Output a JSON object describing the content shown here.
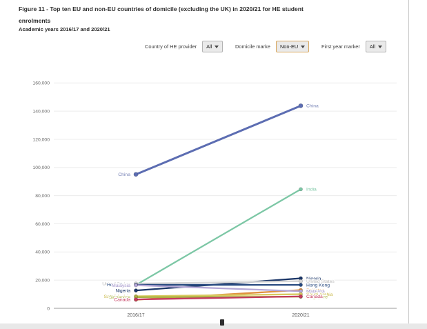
{
  "header": {
    "title": "Figure 11 - Top ten EU and non-EU countries of domicile (excluding the UK) in 2020/21 for HE student enrolments",
    "subtitle": "Academic years 2016/17 and 2020/21"
  },
  "filters": {
    "country_label": "Country of HE provider",
    "country_value": "All",
    "domicile_label": "Domicile marke",
    "domicile_value": "Non-EU",
    "first_year_label": "First year marker",
    "first_year_value": "All"
  },
  "colors": {
    "domicile_highlight_border": "#d9a75e",
    "axis_line": "#9a9a9a",
    "gridline": "#ececec"
  },
  "chart_data": {
    "type": "line",
    "x": [
      "2016/17",
      "2020/21"
    ],
    "title": "",
    "xlabel": "",
    "ylabel": "",
    "ylim": [
      0,
      160000
    ],
    "ytick_step": 20000,
    "grid": true,
    "legend_position": "inline-labels",
    "series": [
      {
        "name": "China",
        "values": [
          95090,
          143820
        ],
        "color": "#5c6db2",
        "label_color": "#7b86b8",
        "left_label": true
      },
      {
        "name": "India",
        "values": [
          16550,
          84555
        ],
        "color": "#7cc7a5",
        "label_color": "#7cc7a5",
        "left_label": false
      },
      {
        "name": "Nigeria",
        "values": [
          12665,
          21305
        ],
        "color": "#1b3668",
        "label_color": "#1b3668",
        "left_label": true
      },
      {
        "name": "United States",
        "values": [
          17580,
          19220
        ],
        "color": "#d6d6d6",
        "label_color": "#b9b9b9",
        "left_label": true
      },
      {
        "name": "Hong Kong",
        "values": [
          16680,
          16655
        ],
        "color": "#27497f",
        "label_color": "#27497f",
        "left_label": true
      },
      {
        "name": "Pakistan",
        "values": [
          6090,
          12975
        ],
        "color": "#e0913f",
        "label_color": "#e0913f",
        "left_label": false
      },
      {
        "name": "Malaysia",
        "values": [
          16370,
          12135
        ],
        "color": "#b4a7d6",
        "label_color": "#9d8fc7",
        "left_label": true
      },
      {
        "name": "Saudi Arabia",
        "values": [
          8570,
          10005
        ],
        "color": "#d8ca5f",
        "label_color": "#c9b94a",
        "left_label": true
      },
      {
        "name": "Singapore",
        "values": [
          7940,
          8250
        ],
        "color": "#a9b244",
        "label_color": "#a9b244",
        "left_label": true
      },
      {
        "name": "Canada",
        "values": [
          6310,
          8455
        ],
        "color": "#c43a5e",
        "label_color": "#c43a5e",
        "left_label": true
      }
    ]
  }
}
